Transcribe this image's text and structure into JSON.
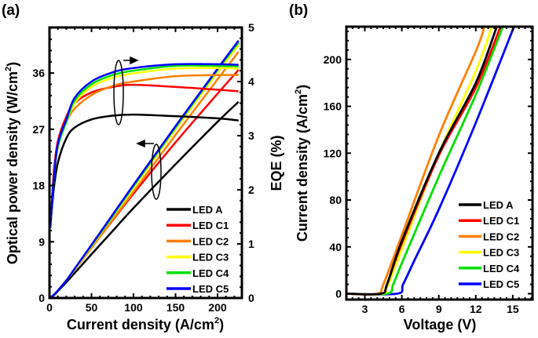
{
  "colors": {
    "LED A": "#000000",
    "LED C1": "#ff0000",
    "LED C2": "#ff8000",
    "LED C3": "#ffff00",
    "LED C4": "#00e000",
    "LED C5": "#0000ff"
  },
  "chart_data": [
    {
      "panel_label": "(a)",
      "type": "line",
      "xlabel": "Current density (A/cm",
      "xlabel_sup": "2",
      "xlabel_end": ")",
      "ylabel": "Optical power density (W/cm",
      "ylabel_sup": "2",
      "ylabel_end": ")",
      "y2label": "EQE (%)",
      "xlim": [
        0,
        229
      ],
      "ylim": [
        0,
        43.3
      ],
      "y2lim": [
        0,
        5
      ],
      "xticks": [
        0,
        50,
        100,
        150,
        200
      ],
      "yticks": [
        0,
        9,
        18,
        27,
        36
      ],
      "y2ticks": [
        0,
        1,
        2,
        3,
        4,
        5
      ],
      "legend_position": "bottom-right",
      "legend": [
        "LED A",
        "LED C1",
        "LED C2",
        "LED C3",
        "LED C4",
        "LED C5"
      ],
      "x": [
        0,
        1,
        5,
        10,
        20,
        30,
        50,
        75,
        100,
        150,
        200,
        225
      ],
      "series_eqe": [
        {
          "name": "LED A",
          "values": [
            0,
            1.3,
            2.0,
            2.5,
            2.95,
            3.15,
            3.3,
            3.37,
            3.39,
            3.36,
            3.32,
            3.28
          ]
        },
        {
          "name": "LED C1",
          "values": [
            0,
            1.3,
            2.3,
            2.9,
            3.35,
            3.6,
            3.8,
            3.9,
            3.94,
            3.9,
            3.85,
            3.82
          ]
        },
        {
          "name": "LED C2",
          "values": [
            0,
            1.3,
            2.2,
            2.8,
            3.25,
            3.5,
            3.75,
            3.92,
            4.0,
            4.1,
            4.12,
            4.12
          ]
        },
        {
          "name": "LED C3",
          "values": [
            0,
            1.3,
            2.2,
            2.8,
            3.25,
            3.6,
            3.9,
            4.07,
            4.15,
            4.24,
            4.25,
            4.24
          ]
        },
        {
          "name": "LED C4",
          "values": [
            0,
            1.3,
            2.2,
            2.8,
            3.25,
            3.65,
            3.95,
            4.12,
            4.2,
            4.29,
            4.29,
            4.28
          ]
        },
        {
          "name": "LED C5",
          "values": [
            0,
            1.3,
            2.2,
            2.85,
            3.3,
            3.7,
            4.0,
            4.17,
            4.25,
            4.32,
            4.32,
            4.31
          ]
        }
      ],
      "series_power": [
        {
          "name": "LED A",
          "values": [
            0,
            0.06,
            0.4,
            1.1,
            2.5,
            4.0,
            7.0,
            10.7,
            14.4,
            21.4,
            28.2,
            31.4
          ]
        },
        {
          "name": "LED C1",
          "values": [
            0,
            0.06,
            0.5,
            1.2,
            2.8,
            4.6,
            8.1,
            12.4,
            16.7,
            24.9,
            32.7,
            36.5
          ]
        },
        {
          "name": "LED C2",
          "values": [
            0,
            0.06,
            0.5,
            1.2,
            2.8,
            4.5,
            8.0,
            12.5,
            17.0,
            26.1,
            35.0,
            39.4
          ]
        },
        {
          "name": "LED C3",
          "values": [
            0,
            0.06,
            0.5,
            1.2,
            2.8,
            4.6,
            8.3,
            13.0,
            17.6,
            27.0,
            36.1,
            40.5
          ]
        },
        {
          "name": "LED C4",
          "values": [
            0,
            0.06,
            0.5,
            1.2,
            2.8,
            4.7,
            8.4,
            13.1,
            17.9,
            27.3,
            36.5,
            40.9
          ]
        },
        {
          "name": "LED C5",
          "values": [
            0,
            0.06,
            0.5,
            1.2,
            2.8,
            4.7,
            8.5,
            13.3,
            18.1,
            27.5,
            36.7,
            41.2
          ]
        }
      ]
    },
    {
      "panel_label": "(b)",
      "type": "line",
      "xlabel": "Voltage (V)",
      "ylabel": "Current density (A/cm",
      "ylabel_sup": "2",
      "ylabel_end": ")",
      "xlim": [
        1.5,
        16.6
      ],
      "ylim": [
        -5,
        228
      ],
      "xticks": [
        3,
        6,
        9,
        12,
        15
      ],
      "yticks": [
        0,
        40,
        80,
        120,
        160,
        200
      ],
      "legend_position": "bottom-right",
      "legend": [
        "LED A",
        "LED C1",
        "LED C2",
        "LED C3",
        "LED C4",
        "LED C5"
      ],
      "series": [
        {
          "name": "LED A",
          "points": [
            [
              1.6,
              0
            ],
            [
              4.3,
              0
            ],
            [
              4.8,
              8
            ],
            [
              6,
              45
            ],
            [
              9,
              120
            ],
            [
              12,
              180
            ],
            [
              13.7,
              228
            ]
          ]
        },
        {
          "name": "LED C1",
          "points": [
            [
              1.6,
              0
            ],
            [
              4.3,
              0
            ],
            [
              4.8,
              8
            ],
            [
              6,
              43
            ],
            [
              9,
              118
            ],
            [
              12,
              176
            ],
            [
              14.0,
              228
            ]
          ]
        },
        {
          "name": "LED C2",
          "points": [
            [
              1.6,
              0
            ],
            [
              4.0,
              0
            ],
            [
              4.5,
              8
            ],
            [
              6,
              50
            ],
            [
              9,
              135
            ],
            [
              12,
              207
            ],
            [
              12.7,
              228
            ]
          ]
        },
        {
          "name": "LED C3",
          "points": [
            [
              1.6,
              0
            ],
            [
              4.4,
              0
            ],
            [
              4.9,
              8
            ],
            [
              6,
              38
            ],
            [
              9,
              120
            ],
            [
              12,
              190
            ],
            [
              13.3,
              228
            ]
          ]
        },
        {
          "name": "LED C4",
          "points": [
            [
              1.6,
              0
            ],
            [
              4.8,
              0
            ],
            [
              5.3,
              8
            ],
            [
              6,
              26
            ],
            [
              9,
              100
            ],
            [
              12,
              170
            ],
            [
              14.2,
              228
            ]
          ]
        },
        {
          "name": "LED C5",
          "points": [
            [
              1.6,
              0
            ],
            [
              5.6,
              0
            ],
            [
              6.1,
              8
            ],
            [
              7,
              28
            ],
            [
              9,
              72
            ],
            [
              12,
              146
            ],
            [
              15.1,
              228
            ]
          ]
        }
      ]
    }
  ]
}
